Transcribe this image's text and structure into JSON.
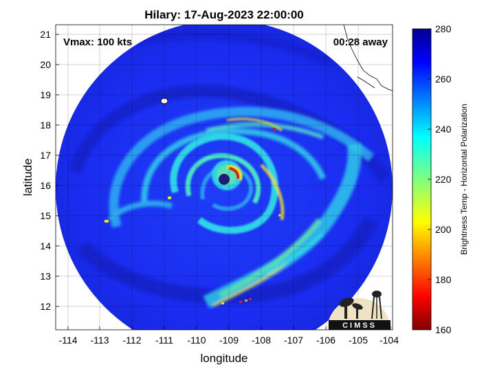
{
  "title": "Hilary: 17-Aug-2023 22:00:00",
  "vmax_label": "Vmax: 100 kts",
  "time_away": "00:28 away",
  "xlabel": "longitude",
  "ylabel": "latitude",
  "x_ticks": [
    "-114",
    "-113",
    "-112",
    "-111",
    "-110",
    "-109",
    "-108",
    "-107",
    "-106",
    "-105",
    "-104"
  ],
  "y_ticks": [
    "21",
    "20",
    "19",
    "18",
    "17",
    "16",
    "15",
    "14",
    "13",
    "12"
  ],
  "colorbar": {
    "label": "Brightness Temp - Horizontal Polarization",
    "ticks": [
      "280",
      "260",
      "240",
      "220",
      "200",
      "180",
      "160"
    ],
    "range": [
      160,
      280
    ],
    "colormap": "jet"
  },
  "logo_text": "CIMSS",
  "map": {
    "lon_range": [
      -114.3,
      -103.9
    ],
    "lat_range": [
      11.3,
      21.2
    ],
    "storm_center": {
      "lon": -109.1,
      "lat": 16.2
    },
    "colors": {
      "background_cold": "#1a2cf0",
      "cold_core": "#1b1b7a",
      "band_cyan": "#2fd3e8",
      "band_yellow": "#e8e02a",
      "eyewall_red": "#d8231a",
      "coastline": "#000000"
    }
  }
}
